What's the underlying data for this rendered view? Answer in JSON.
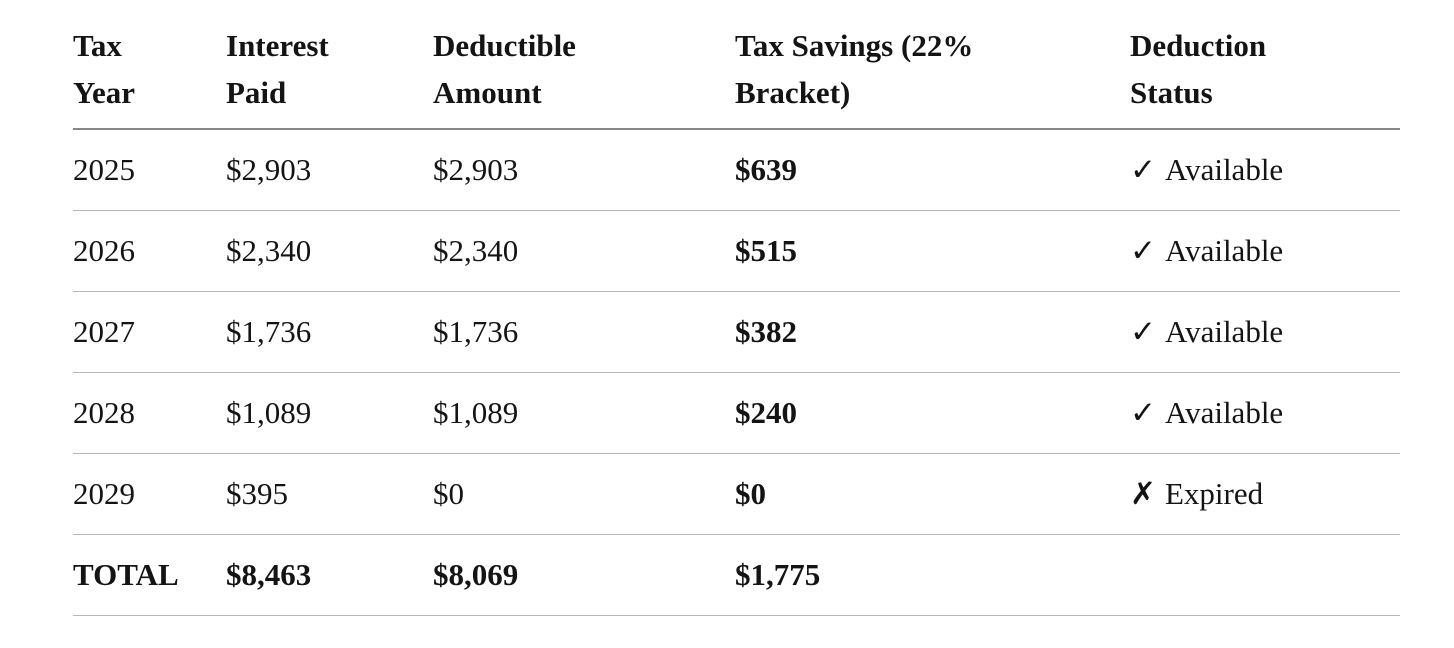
{
  "table": {
    "headers": [
      {
        "lines": [
          "Tax",
          "Year"
        ]
      },
      {
        "lines": [
          "Interest",
          "Paid"
        ]
      },
      {
        "lines": [
          "Deductible",
          "Amount"
        ]
      },
      {
        "lines": [
          "Tax Savings (22%",
          "Bracket)"
        ]
      },
      {
        "lines": [
          "Deduction",
          "Status"
        ]
      }
    ],
    "rows": [
      {
        "year": "2025",
        "interest": "$2,903",
        "deductible": "$2,903",
        "savings": "$639",
        "status_icon": "✓",
        "status_label": "Available"
      },
      {
        "year": "2026",
        "interest": "$2,340",
        "deductible": "$2,340",
        "savings": "$515",
        "status_icon": "✓",
        "status_label": "Available"
      },
      {
        "year": "2027",
        "interest": "$1,736",
        "deductible": "$1,736",
        "savings": "$382",
        "status_icon": "✓",
        "status_label": "Available"
      },
      {
        "year": "2028",
        "interest": "$1,089",
        "deductible": "$1,089",
        "savings": "$240",
        "status_icon": "✓",
        "status_label": "Available"
      },
      {
        "year": "2029",
        "interest": "$395",
        "deductible": "$0",
        "savings": "$0",
        "status_icon": "✗",
        "status_label": "Expired"
      }
    ],
    "total": {
      "label": "TOTAL",
      "interest": "$8,463",
      "deductible": "$8,069",
      "savings": "$1,775",
      "status": ""
    }
  },
  "colors": {
    "background": "#ffffff",
    "text": "#141414",
    "header_border": "#878787",
    "row_border": "#b8b8b8"
  },
  "chart_data": {
    "type": "table",
    "columns": [
      "Tax Year",
      "Interest Paid",
      "Deductible Amount",
      "Tax Savings (22% Bracket)",
      "Deduction Status"
    ],
    "rows": [
      [
        "2025",
        2903,
        2903,
        639,
        "Available"
      ],
      [
        "2026",
        2340,
        2340,
        515,
        "Available"
      ],
      [
        "2027",
        1736,
        1736,
        382,
        "Available"
      ],
      [
        "2028",
        1089,
        1089,
        240,
        "Available"
      ],
      [
        "2029",
        395,
        0,
        0,
        "Expired"
      ]
    ],
    "totals": {
      "label": "TOTAL",
      "interest_paid": 8463,
      "deductible_amount": 8069,
      "tax_savings": 1775
    },
    "tax_bracket_percent": 22
  }
}
